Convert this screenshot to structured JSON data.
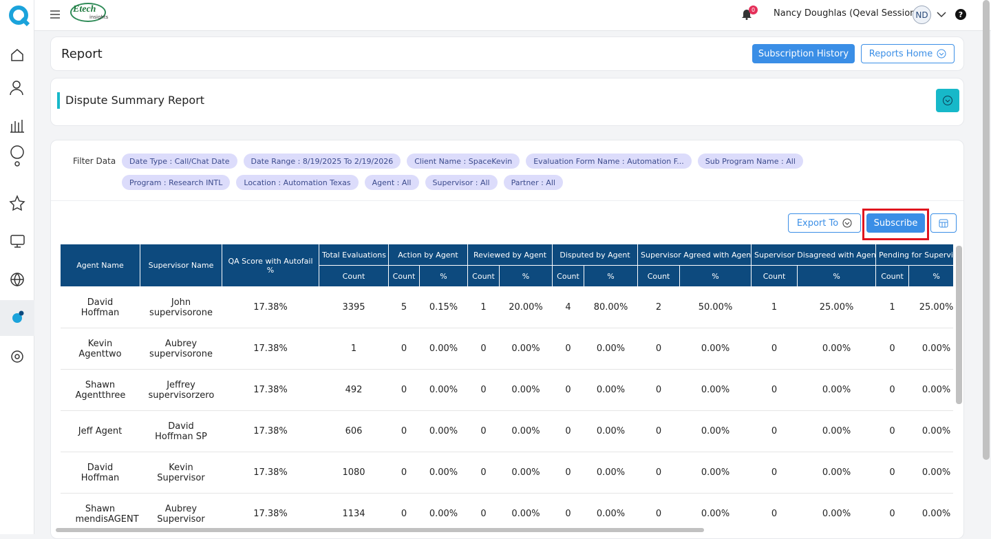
{
  "header": {
    "logo": "Etech",
    "logo_sub": "insights",
    "notifications": "0",
    "user": "Nancy Doughlas (Qeval Session)",
    "initials": "ND"
  },
  "page": {
    "title": "Report",
    "subscription_history": "Subscription History",
    "reports_home": "Reports Home"
  },
  "report": {
    "title": "Dispute Summary Report"
  },
  "filters": {
    "label": "Filter Data",
    "chips": [
      "Date Type : Call/Chat Date",
      "Date Range : 8/19/2025 To 2/19/2026",
      "Client Name : SpaceKevin",
      "Evaluation Form Name : Automation F...",
      "Sub Program Name : All",
      "Program : Research INTL",
      "Location : Automation Texas",
      "Agent : All",
      "Supervisor : All",
      "Partner : All"
    ]
  },
  "actions": {
    "export": "Export To",
    "subscribe": "Subscribe"
  },
  "table": {
    "columns": [
      "Agent Name",
      "Supervisor Name",
      "QA Score with Autofail %"
    ],
    "groups": [
      {
        "label": "Total Evaluations",
        "subs": [
          "Count"
        ]
      },
      {
        "label": "Action by Agent",
        "subs": [
          "Count",
          "%"
        ]
      },
      {
        "label": "Reviewed by Agent",
        "subs": [
          "Count",
          "%"
        ]
      },
      {
        "label": "Disputed by Agent",
        "subs": [
          "Count",
          "%"
        ]
      },
      {
        "label": "Supervisor Agreed with Agent",
        "subs": [
          "Count",
          "%"
        ]
      },
      {
        "label": "Supervisor Disagreed with Agent",
        "subs": [
          "Count",
          "%"
        ]
      },
      {
        "label": "Pending for Supervis",
        "subs": [
          "Count",
          "%"
        ]
      }
    ],
    "rows": [
      [
        "David Hoffman",
        "John supervisorone",
        "17.38%",
        3395,
        5,
        "0.15%",
        1,
        "20.00%",
        4,
        "80.00%",
        2,
        "50.00%",
        1,
        "25.00%",
        1,
        "25.00%"
      ],
      [
        "Kevin Agenttwo",
        "Aubrey supervisorone",
        "17.38%",
        1,
        0,
        "0.00%",
        0,
        "0.00%",
        0,
        "0.00%",
        0,
        "0.00%",
        0,
        "0.00%",
        0,
        "0.00%"
      ],
      [
        "Shawn Agentthree",
        "Jeffrey supervisorzero",
        "17.38%",
        492,
        0,
        "0.00%",
        0,
        "0.00%",
        0,
        "0.00%",
        0,
        "0.00%",
        0,
        "0.00%",
        0,
        "0.00%"
      ],
      [
        "Jeff Agent",
        "David Hoffman SP",
        "17.38%",
        606,
        0,
        "0.00%",
        0,
        "0.00%",
        0,
        "0.00%",
        0,
        "0.00%",
        0,
        "0.00%",
        0,
        "0.00%"
      ],
      [
        "David Hoffman",
        "Kevin Supervisor",
        "17.38%",
        1080,
        0,
        "0.00%",
        0,
        "0.00%",
        0,
        "0.00%",
        0,
        "0.00%",
        0,
        "0.00%",
        0,
        "0.00%"
      ],
      [
        "Shawn mendisAGENT",
        "Aubrey Supervisor",
        "17.38%",
        1134,
        0,
        "0.00%",
        0,
        "0.00%",
        0,
        "0.00%",
        0,
        "0.00%",
        0,
        "0.00%",
        0,
        "0.00%"
      ]
    ]
  }
}
